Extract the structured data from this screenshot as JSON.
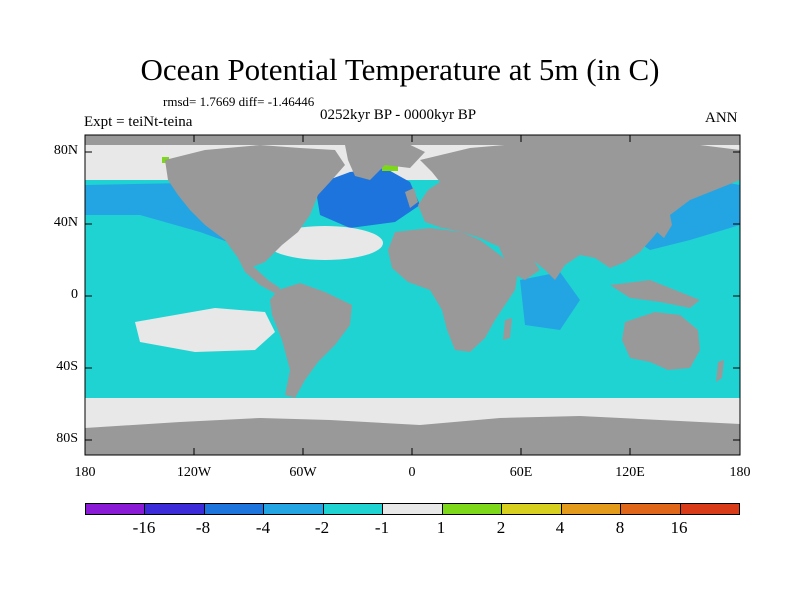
{
  "title": "Ocean Potential Temperature at 5m (in C)",
  "stats": "rmsd= 1.7669 diff= -1.46446",
  "period": "0252kyr BP - 0000kyr BP",
  "experiment": "Expt = teiNt-teina",
  "season": "ANN",
  "lat_labels": [
    "80N",
    "40N",
    "0",
    "40S",
    "80S"
  ],
  "lon_labels": [
    "180",
    "120W",
    "60W",
    "0",
    "60E",
    "120E",
    "180"
  ],
  "colorbar": {
    "labels": [
      "-16",
      "-8",
      "-4",
      "-2",
      "-1",
      "1",
      "2",
      "4",
      "8",
      "16"
    ],
    "colors": [
      "#8a1ad6",
      "#3c2bd8",
      "#1d74dc",
      "#23a5e3",
      "#20d3d3",
      "#e8e8e8",
      "#7ed81a",
      "#d8d01e",
      "#e49a1a",
      "#e0661a",
      "#d93a18"
    ]
  },
  "map_colors": {
    "land": "#999999",
    "ocean_minus1_to_minus2": "#20d3d3",
    "ocean_minus2_to_minus4": "#23a5e3",
    "ocean_minus4_to_minus8": "#1d74dc",
    "near_zero": "#e8e8e8",
    "positive_1_to_2": "#7ed81a"
  }
}
